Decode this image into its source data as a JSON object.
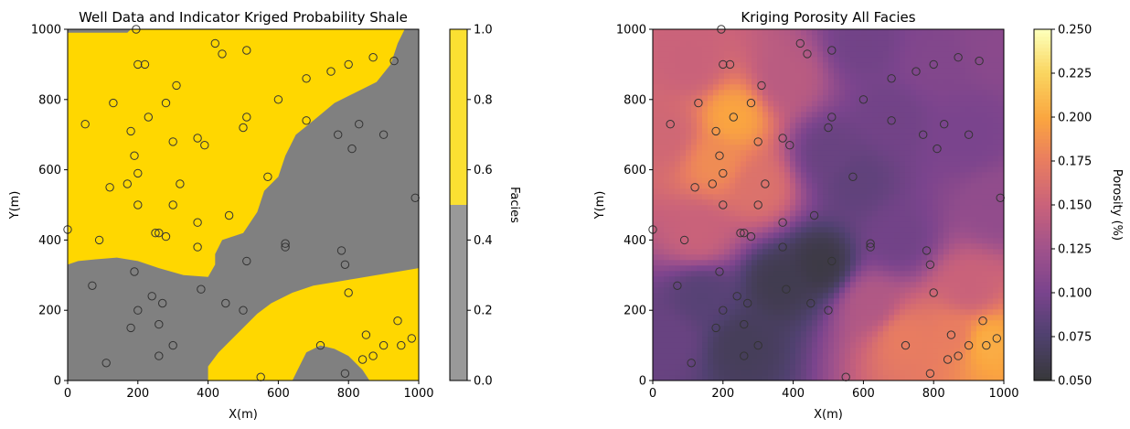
{
  "chart_data": [
    {
      "type": "heatmap",
      "title": "Well Data and Indicator Kriged Probability Shale",
      "xlabel": "X(m)",
      "ylabel": "Y(m)",
      "xlim": [
        0,
        1000
      ],
      "ylim": [
        0,
        1000
      ],
      "xticks": [
        "0",
        "200",
        "400",
        "600",
        "800",
        "1000"
      ],
      "yticks": [
        "0",
        "200",
        "400",
        "600",
        "800",
        "1000"
      ],
      "colorbar": {
        "label": "Facies",
        "range": [
          0,
          1
        ],
        "ticks": [
          "0.0",
          "0.2",
          "0.4",
          "0.6",
          "0.8",
          "1.0"
        ],
        "colors": {
          "shale": "#999999",
          "sand": "#fbe032"
        }
      },
      "map_colors": {
        "shale": "#808080",
        "sand": "#ffd700"
      },
      "sand_regions": {
        "upper": [
          [
            0,
            330
          ],
          [
            30,
            340
          ],
          [
            80,
            345
          ],
          [
            140,
            350
          ],
          [
            200,
            340
          ],
          [
            260,
            320
          ],
          [
            330,
            300
          ],
          [
            400,
            295
          ],
          [
            420,
            330
          ],
          [
            420,
            360
          ],
          [
            440,
            400
          ],
          [
            500,
            420
          ],
          [
            540,
            480
          ],
          [
            560,
            540
          ],
          [
            600,
            580
          ],
          [
            620,
            640
          ],
          [
            650,
            700
          ],
          [
            700,
            740
          ],
          [
            760,
            790
          ],
          [
            820,
            820
          ],
          [
            880,
            850
          ],
          [
            920,
            900
          ],
          [
            940,
            960
          ],
          [
            960,
            1000
          ],
          [
            180,
            1000
          ],
          [
            170,
            990
          ],
          [
            0,
            990
          ]
        ],
        "lower": [
          [
            400,
            0
          ],
          [
            400,
            40
          ],
          [
            430,
            80
          ],
          [
            460,
            110
          ],
          [
            500,
            150
          ],
          [
            540,
            190
          ],
          [
            580,
            220
          ],
          [
            640,
            250
          ],
          [
            700,
            270
          ],
          [
            760,
            280
          ],
          [
            820,
            290
          ],
          [
            880,
            300
          ],
          [
            940,
            310
          ],
          [
            1000,
            320
          ],
          [
            1000,
            0
          ],
          [
            860,
            0
          ],
          [
            840,
            30
          ],
          [
            800,
            70
          ],
          [
            760,
            90
          ],
          [
            720,
            100
          ],
          [
            680,
            80
          ],
          [
            660,
            40
          ],
          [
            640,
            0
          ]
        ]
      }
    },
    {
      "type": "heatmap",
      "title": "Kriging Porosity All Facies",
      "xlabel": "X(m)",
      "ylabel": "Y(m)",
      "xlim": [
        0,
        1000
      ],
      "ylim": [
        0,
        1000
      ],
      "xticks": [
        "0",
        "200",
        "400",
        "600",
        "800",
        "1000"
      ],
      "yticks": [
        "0",
        "200",
        "400",
        "600",
        "800",
        "1000"
      ],
      "colorbar": {
        "label": "Porosity (%)",
        "range": [
          0.05,
          0.25
        ],
        "ticks": [
          "0.050",
          "0.075",
          "0.100",
          "0.125",
          "0.150",
          "0.175",
          "0.200",
          "0.225",
          "0.250"
        ],
        "colormap": "inferno"
      },
      "porosity_anchors": [
        {
          "x": 230,
          "y": 750,
          "v": 0.2
        },
        {
          "x": 180,
          "y": 620,
          "v": 0.185
        },
        {
          "x": 110,
          "y": 900,
          "v": 0.15
        },
        {
          "x": 40,
          "y": 700,
          "v": 0.155
        },
        {
          "x": 300,
          "y": 550,
          "v": 0.165
        },
        {
          "x": 380,
          "y": 860,
          "v": 0.14
        },
        {
          "x": 130,
          "y": 420,
          "v": 0.15
        },
        {
          "x": 950,
          "y": 110,
          "v": 0.205
        },
        {
          "x": 860,
          "y": 130,
          "v": 0.175
        },
        {
          "x": 720,
          "y": 120,
          "v": 0.175
        },
        {
          "x": 620,
          "y": 220,
          "v": 0.135
        },
        {
          "x": 900,
          "y": 260,
          "v": 0.15
        },
        {
          "x": 480,
          "y": 330,
          "v": 0.055
        },
        {
          "x": 360,
          "y": 280,
          "v": 0.06
        },
        {
          "x": 250,
          "y": 100,
          "v": 0.065
        },
        {
          "x": 140,
          "y": 240,
          "v": 0.08
        },
        {
          "x": 50,
          "y": 120,
          "v": 0.09
        },
        {
          "x": 580,
          "y": 570,
          "v": 0.085
        },
        {
          "x": 680,
          "y": 750,
          "v": 0.095
        },
        {
          "x": 900,
          "y": 700,
          "v": 0.1
        },
        {
          "x": 800,
          "y": 900,
          "v": 0.105
        },
        {
          "x": 600,
          "y": 960,
          "v": 0.095
        },
        {
          "x": 980,
          "y": 950,
          "v": 0.11
        },
        {
          "x": 980,
          "y": 500,
          "v": 0.115
        },
        {
          "x": 700,
          "y": 400,
          "v": 0.095
        },
        {
          "x": 500,
          "y": 650,
          "v": 0.09
        }
      ]
    }
  ],
  "wells": [
    {
      "x": 0,
      "y": 430
    },
    {
      "x": 50,
      "y": 730
    },
    {
      "x": 70,
      "y": 270
    },
    {
      "x": 90,
      "y": 400
    },
    {
      "x": 110,
      "y": 50
    },
    {
      "x": 120,
      "y": 550
    },
    {
      "x": 130,
      "y": 790
    },
    {
      "x": 170,
      "y": 560
    },
    {
      "x": 180,
      "y": 150
    },
    {
      "x": 180,
      "y": 710
    },
    {
      "x": 190,
      "y": 310
    },
    {
      "x": 190,
      "y": 640
    },
    {
      "x": 195,
      "y": 1000
    },
    {
      "x": 200,
      "y": 900
    },
    {
      "x": 200,
      "y": 590
    },
    {
      "x": 200,
      "y": 500
    },
    {
      "x": 200,
      "y": 200
    },
    {
      "x": 220,
      "y": 900
    },
    {
      "x": 230,
      "y": 750
    },
    {
      "x": 240,
      "y": 240
    },
    {
      "x": 250,
      "y": 420
    },
    {
      "x": 260,
      "y": 420
    },
    {
      "x": 260,
      "y": 160
    },
    {
      "x": 260,
      "y": 70
    },
    {
      "x": 270,
      "y": 220
    },
    {
      "x": 280,
      "y": 410
    },
    {
      "x": 280,
      "y": 790
    },
    {
      "x": 300,
      "y": 680
    },
    {
      "x": 300,
      "y": 500
    },
    {
      "x": 300,
      "y": 100
    },
    {
      "x": 310,
      "y": 840
    },
    {
      "x": 320,
      "y": 560
    },
    {
      "x": 370,
      "y": 690
    },
    {
      "x": 370,
      "y": 450
    },
    {
      "x": 370,
      "y": 380
    },
    {
      "x": 380,
      "y": 260
    },
    {
      "x": 390,
      "y": 670
    },
    {
      "x": 420,
      "y": 960
    },
    {
      "x": 440,
      "y": 930
    },
    {
      "x": 450,
      "y": 220
    },
    {
      "x": 460,
      "y": 470
    },
    {
      "x": 500,
      "y": 720
    },
    {
      "x": 500,
      "y": 200
    },
    {
      "x": 510,
      "y": 940
    },
    {
      "x": 510,
      "y": 750
    },
    {
      "x": 510,
      "y": 340
    },
    {
      "x": 550,
      "y": 10
    },
    {
      "x": 570,
      "y": 580
    },
    {
      "x": 600,
      "y": 800
    },
    {
      "x": 620,
      "y": 390
    },
    {
      "x": 620,
      "y": 380
    },
    {
      "x": 680,
      "y": 860
    },
    {
      "x": 680,
      "y": 740
    },
    {
      "x": 720,
      "y": 100
    },
    {
      "x": 750,
      "y": 880
    },
    {
      "x": 770,
      "y": 700
    },
    {
      "x": 780,
      "y": 370
    },
    {
      "x": 790,
      "y": 20
    },
    {
      "x": 790,
      "y": 330
    },
    {
      "x": 800,
      "y": 900
    },
    {
      "x": 800,
      "y": 250
    },
    {
      "x": 810,
      "y": 660
    },
    {
      "x": 830,
      "y": 730
    },
    {
      "x": 840,
      "y": 60
    },
    {
      "x": 850,
      "y": 130
    },
    {
      "x": 870,
      "y": 920
    },
    {
      "x": 870,
      "y": 70
    },
    {
      "x": 900,
      "y": 700
    },
    {
      "x": 900,
      "y": 100
    },
    {
      "x": 930,
      "y": 910
    },
    {
      "x": 940,
      "y": 170
    },
    {
      "x": 950,
      "y": 100
    },
    {
      "x": 980,
      "y": 120
    },
    {
      "x": 990,
      "y": 520
    }
  ]
}
